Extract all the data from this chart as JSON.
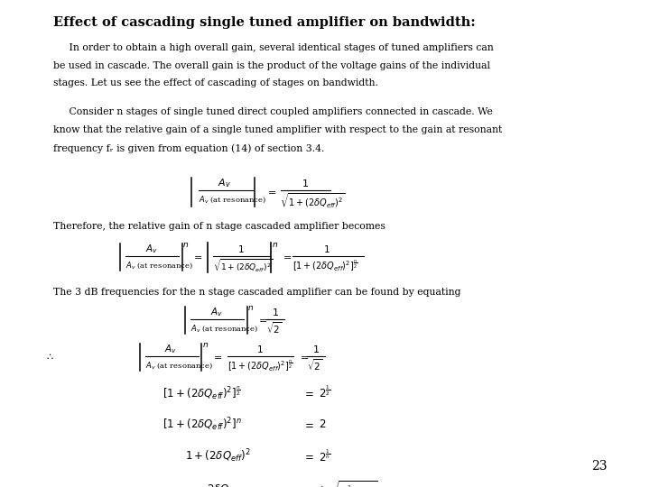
{
  "title": "Effect of cascading single tuned amplifier on bandwidth:",
  "background_color": "#ffffff",
  "page_number": "23",
  "para1": "     In order to obtain a high overall gain, several identical stages of tuned amplifiers can\nbe used in cascade. The overall gain is the product of the voltage gains of the individual\nstages. Let us see the effect of cascading of stages on bandwidth.",
  "para2": "     Consider n stages of single tuned direct coupled amplifiers connected in cascade. We\nknow that the relative gain of a single tuned amplifier with respect to the gain at resonant\nfrequency fᵣ is given from equation (14) of section 3.4.",
  "para3": "Therefore, the relative gain of n stage cascaded amplifier becomes",
  "para4": "The 3 dB frequencies for the n stage cascaded amplifier can be found by equating",
  "title_fontsize": 10.5,
  "body_fontsize": 7.8,
  "math_fontsize": 8.0,
  "math_small": 6.5
}
